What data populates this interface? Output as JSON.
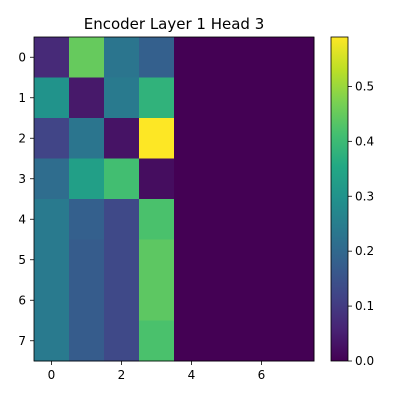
{
  "chart_data": {
    "type": "heatmap",
    "title": "Encoder Layer 1 Head 3",
    "colormap": "viridis",
    "x_ticks": [
      0,
      2,
      4,
      6
    ],
    "y_ticks": [
      0,
      1,
      2,
      3,
      4,
      5,
      6,
      7
    ],
    "colorbar_ticks": [
      0.0,
      0.1,
      0.2,
      0.3,
      0.4,
      0.5
    ],
    "colorbar_tick_labels": [
      "0.0",
      "0.1",
      "0.2",
      "0.3",
      "0.4",
      "0.5"
    ],
    "vmin": 0.0,
    "vmax": 0.59,
    "rows": 8,
    "cols": 8,
    "values": [
      [
        0.07,
        0.45,
        0.23,
        0.18,
        0.0,
        0.0,
        0.0,
        0.0
      ],
      [
        0.3,
        0.04,
        0.24,
        0.38,
        0.0,
        0.0,
        0.0,
        0.0
      ],
      [
        0.12,
        0.23,
        0.03,
        0.59,
        0.0,
        0.0,
        0.0,
        0.0
      ],
      [
        0.21,
        0.33,
        0.41,
        0.02,
        0.0,
        0.0,
        0.0,
        0.0
      ],
      [
        0.24,
        0.18,
        0.13,
        0.42,
        0.0,
        0.0,
        0.0,
        0.0
      ],
      [
        0.24,
        0.17,
        0.13,
        0.44,
        0.0,
        0.0,
        0.0,
        0.0
      ],
      [
        0.24,
        0.17,
        0.13,
        0.44,
        0.0,
        0.0,
        0.0,
        0.0
      ],
      [
        0.24,
        0.17,
        0.13,
        0.42,
        0.0,
        0.0,
        0.0,
        0.0
      ]
    ]
  }
}
